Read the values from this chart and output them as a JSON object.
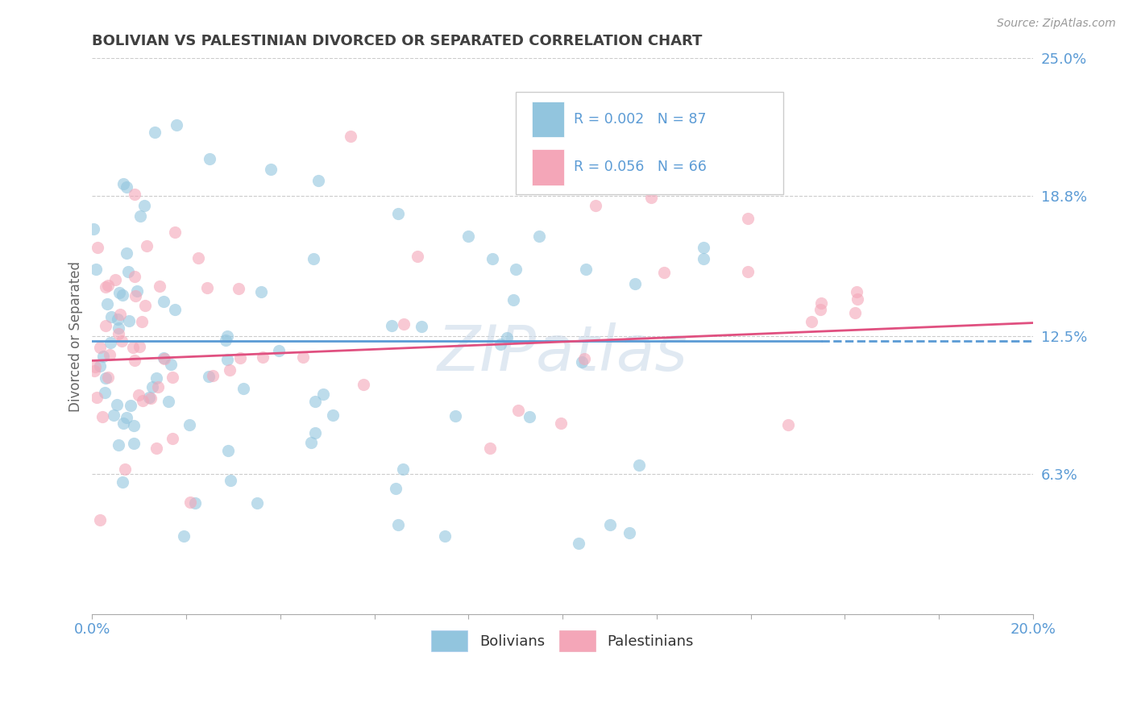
{
  "title": "BOLIVIAN VS PALESTINIAN DIVORCED OR SEPARATED CORRELATION CHART",
  "source": "Source: ZipAtlas.com",
  "ylabel": "Divorced or Separated",
  "xlim": [
    0.0,
    0.2
  ],
  "ylim": [
    0.0,
    0.25
  ],
  "xticks": [
    0.0,
    0.02,
    0.04,
    0.06,
    0.08,
    0.1,
    0.12,
    0.14,
    0.16,
    0.18,
    0.2
  ],
  "xticklabels": [
    "0.0%",
    "",
    "",
    "",
    "",
    "",
    "",
    "",
    "",
    "",
    "20.0%"
  ],
  "ytick_positions": [
    0.0,
    0.063,
    0.125,
    0.188,
    0.25
  ],
  "yticklabels": [
    "",
    "6.3%",
    "12.5%",
    "18.8%",
    "25.0%"
  ],
  "bolivians_color": "#92c5de",
  "palestinians_color": "#f4a6b8",
  "trendline_bolivians_color": "#5b9bd5",
  "trendline_palestinians_color": "#e05080",
  "R_bolivians": 0.002,
  "N_bolivians": 87,
  "R_palestinians": 0.056,
  "N_palestinians": 66,
  "background_color": "#ffffff",
  "grid_color": "#cccccc",
  "title_color": "#404040",
  "axis_label_color": "#666666",
  "tick_label_color": "#5b9bd5",
  "legend_N_color": "#5b9bd5",
  "watermark": "ZIPatlas"
}
